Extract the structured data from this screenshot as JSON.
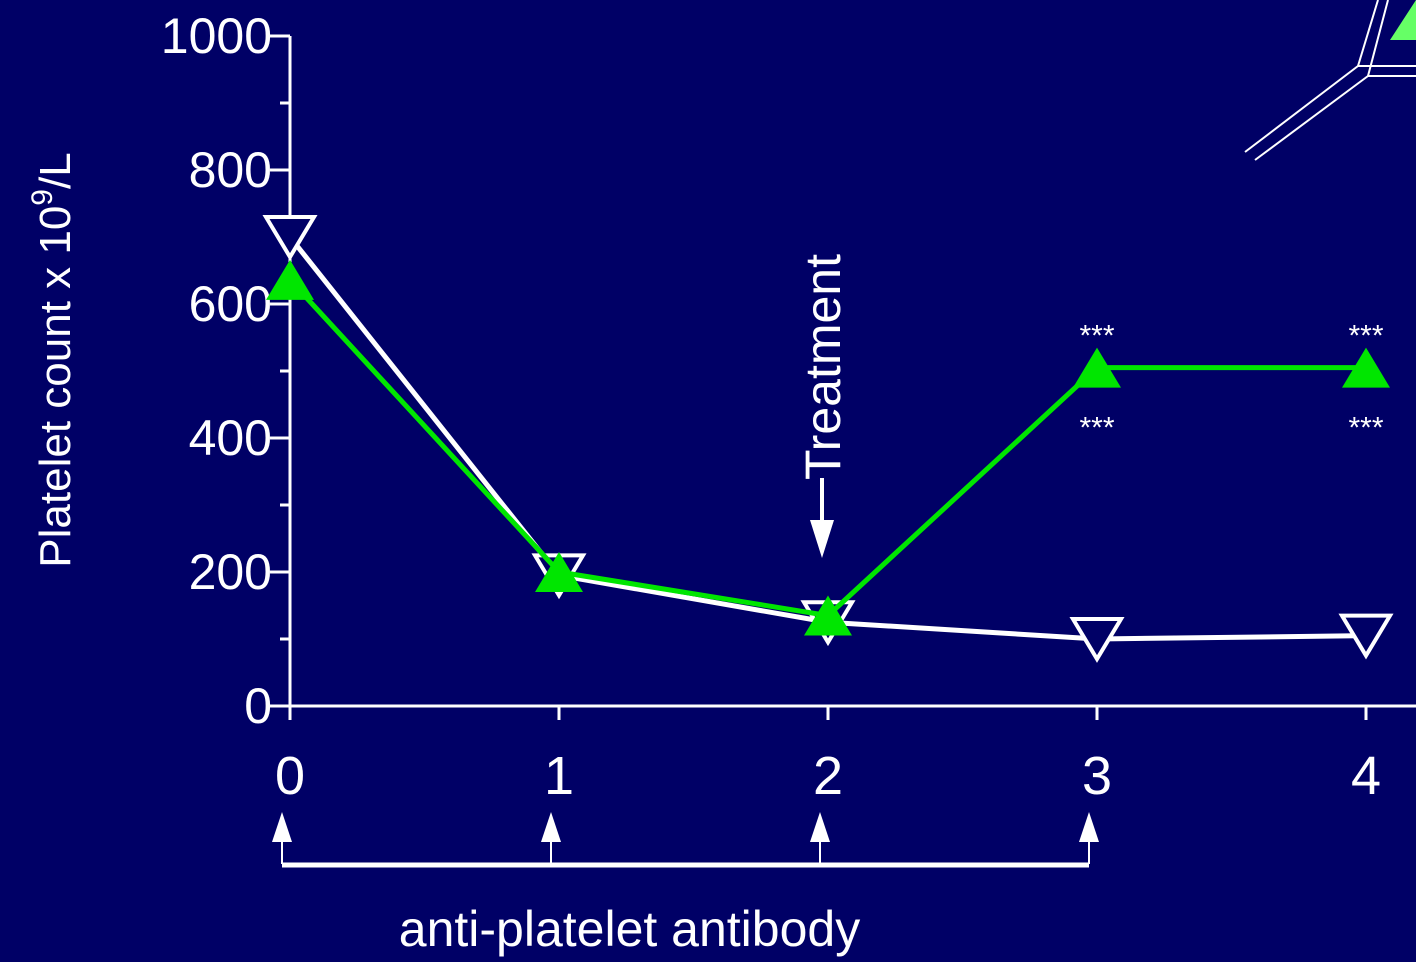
{
  "chart_data": {
    "type": "line",
    "ylabel": "Platelet count x 10",
    "ylabel_superscript": "9",
    "ylabel_suffix": "/L",
    "x": [
      0,
      1,
      2,
      3,
      4
    ],
    "xlim": [
      0,
      4
    ],
    "xticks": [
      0,
      1,
      2,
      3,
      4
    ],
    "ylim": [
      0,
      1000
    ],
    "yticks": [
      0,
      200,
      400,
      600,
      800,
      1000
    ],
    "yminor": [
      100,
      300,
      500,
      700,
      900
    ],
    "series": [
      {
        "color": "#ffffff",
        "marker": "triangle-down",
        "values": [
          700,
          195,
          125,
          100,
          105
        ]
      },
      {
        "color": "#00e600",
        "marker": "triangle-up",
        "values": [
          636,
          200,
          135,
          505,
          505
        ]
      }
    ],
    "annotations": [
      {
        "text": "***",
        "x": 3,
        "placement": "above"
      },
      {
        "text": "***",
        "x": 3,
        "placement": "below"
      },
      {
        "text": "***",
        "x": 4,
        "placement": "above"
      },
      {
        "text": "***",
        "x": 4,
        "placement": "below"
      }
    ],
    "treatment": {
      "text": "Treatment",
      "x": 2
    },
    "dosing": {
      "text": "anti-platelet antibody",
      "x": [
        0,
        1,
        2,
        3
      ]
    }
  }
}
